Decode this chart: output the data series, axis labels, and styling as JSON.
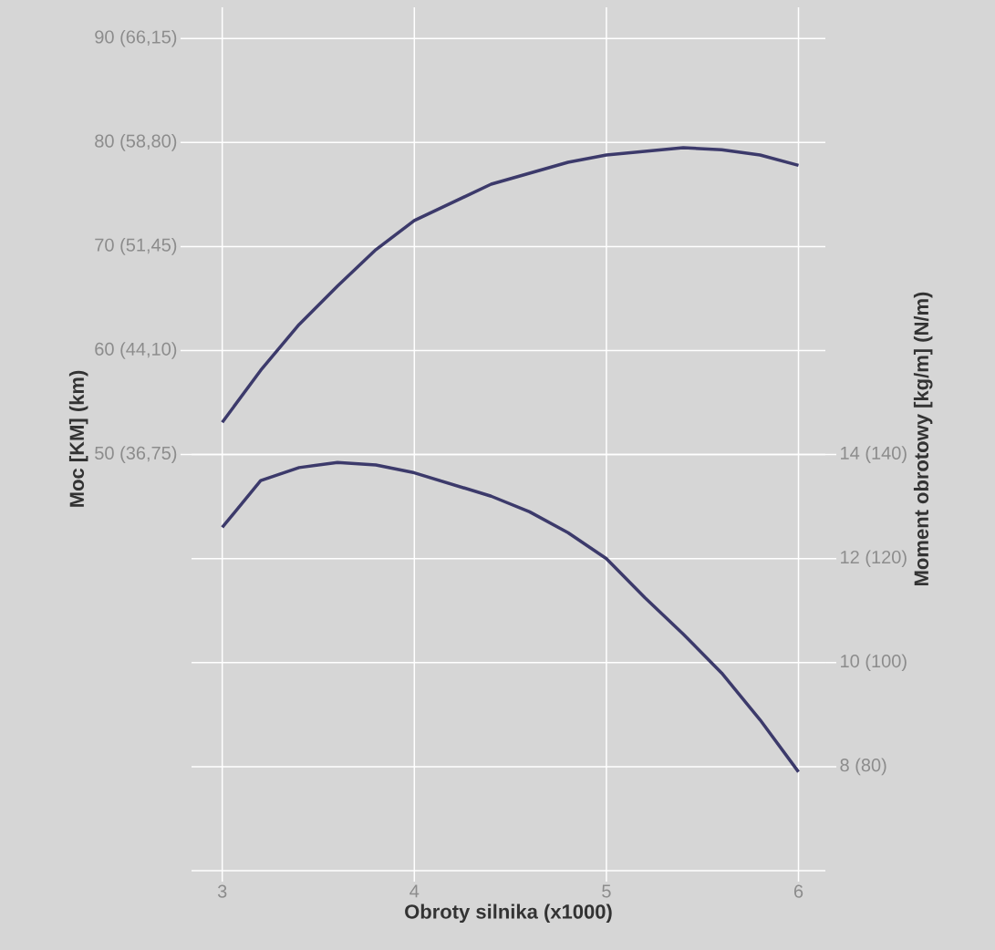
{
  "chart_data": {
    "type": "line",
    "xlabel": "Obroty silnika (x1000)",
    "ylabel": "Moc [KM] (km)",
    "y2label": "Moment obrotowy [kg/m] (N/m)",
    "xlim": [
      2.84,
      6.14
    ],
    "xticks": [
      3,
      4,
      5,
      6
    ],
    "ylim": [
      10,
      93
    ],
    "yticks": [
      50,
      60,
      70,
      80,
      90
    ],
    "y2lim": [
      6,
      22.6
    ],
    "y2ticks": [
      8,
      10,
      12,
      14
    ],
    "annotations": [
      "(36,75)",
      "(44,10)",
      "(51,45)",
      "(58,80)",
      "(66,15)",
      "(80)",
      "(100)",
      "(120)",
      "(140)"
    ],
    "grid": true,
    "line_style": "solid",
    "x": [
      3.0,
      3.2,
      3.4,
      3.6,
      3.8,
      4.0,
      4.4,
      4.8,
      5.0,
      5.4,
      5.6,
      5.8,
      6.0
    ],
    "series": [
      {
        "color": "#3c3a6b",
        "values": [
          53.1,
          58.1,
          62.5,
          66.2,
          69.7,
          72.5,
          76.0,
          78.1,
          78.8,
          79.5,
          79.3,
          78.8,
          77.8
        ]
      },
      {
        "color": "#3c3a6b",
        "axis": "y2",
        "x": [
          3.0,
          3.2,
          3.4,
          3.6,
          3.8,
          4.0,
          4.4,
          4.6,
          4.8,
          5.0,
          5.2,
          5.4,
          5.6,
          5.8,
          6.0
        ],
        "values": [
          12.6,
          13.5,
          13.75,
          13.85,
          13.8,
          13.65,
          13.2,
          12.9,
          12.5,
          12.0,
          11.25,
          10.55,
          9.8,
          8.9,
          7.9
        ]
      }
    ]
  }
}
